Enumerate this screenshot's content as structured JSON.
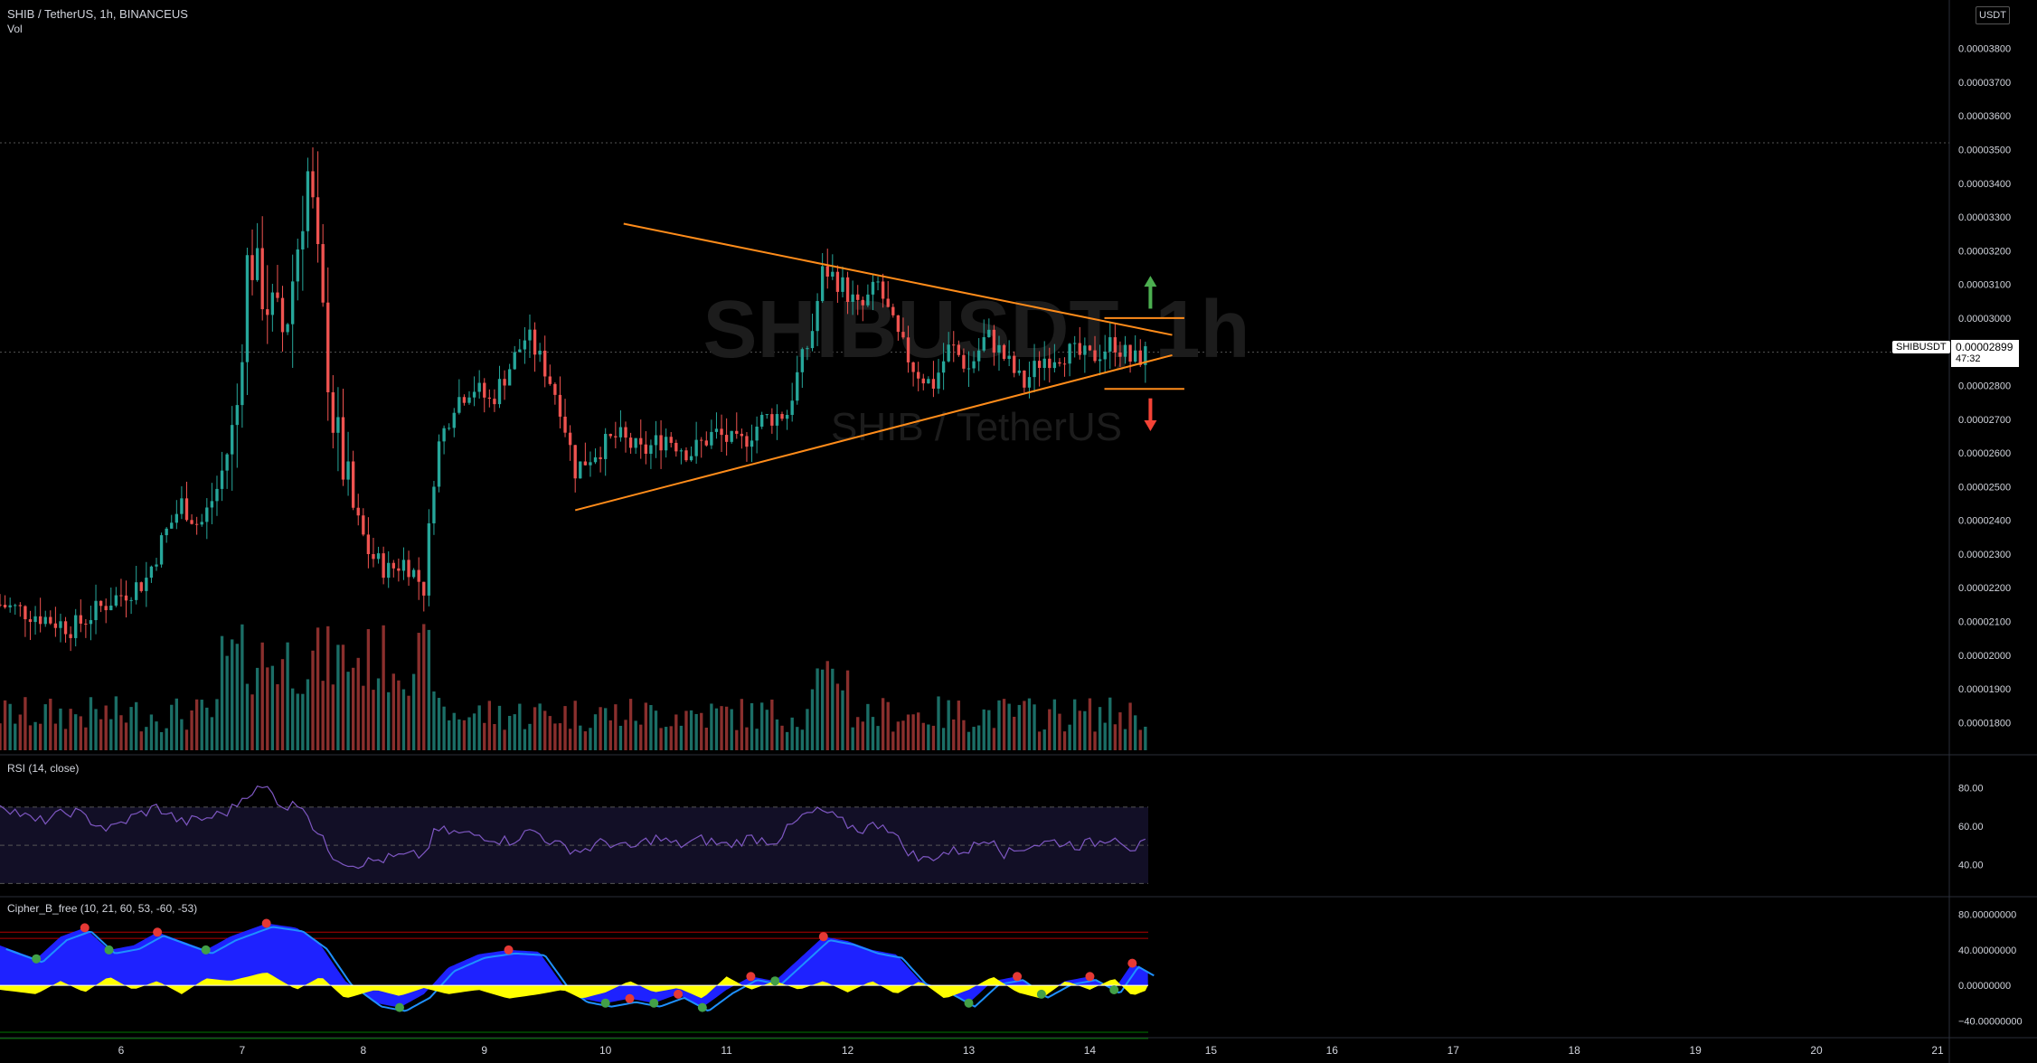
{
  "header": {
    "symbol_line": "SHIB / TetherUS, 1h, BINANCEUS",
    "volume_label": "Vol",
    "currency": "USDT"
  },
  "watermark": {
    "ticker": "SHIBUSDT, 1h",
    "name": "SHIB / TetherUS"
  },
  "price_badge": {
    "symbol": "SHIBUSDT",
    "price": "0.00002899",
    "countdown": "47:32"
  },
  "colors": {
    "background": "#000000",
    "up": "#26a69a",
    "down": "#ef5350",
    "pattern": "#ff8c1a",
    "arrow_up": "#4caf50",
    "arrow_down": "#f44336",
    "rsi_line": "#7e57c2",
    "cipher_wave": "#1e22ff",
    "cipher_money": "#ffff00"
  },
  "chart_data": [
    {
      "type": "candlestick",
      "title": "SHIB / TetherUS, 1h, BINANCEUS",
      "x_ticks": [
        "6",
        "7",
        "8",
        "9",
        "10",
        "11",
        "12",
        "13",
        "14",
        "15",
        "16",
        "17",
        "18",
        "19",
        "20",
        "21"
      ],
      "y_ticks": [
        "0.00003800",
        "0.00003700",
        "0.00003600",
        "0.00003500",
        "0.00003400",
        "0.00003300",
        "0.00003200",
        "0.00003100",
        "0.00003000",
        "0.00002800",
        "0.00002700",
        "0.00002600",
        "0.00002500",
        "0.00002400",
        "0.00002300",
        "0.00002200",
        "0.00002100",
        "0.00002000",
        "0.00001900",
        "0.00001800"
      ],
      "ylim": [
        1.75e-05,
        3.85e-05
      ],
      "last_price": 2.899e-05,
      "series_close_path": [
        [
          5.0,
          2.15
        ],
        [
          5.3,
          2.12
        ],
        [
          5.6,
          2.08
        ],
        [
          5.9,
          2.16
        ],
        [
          6.2,
          2.22
        ],
        [
          6.35,
          2.35
        ],
        [
          6.5,
          2.45
        ],
        [
          6.65,
          2.38
        ],
        [
          6.8,
          2.5
        ],
        [
          6.95,
          2.7
        ],
        [
          7.05,
          3.2
        ],
        [
          7.2,
          3.05
        ],
        [
          7.35,
          2.95
        ],
        [
          7.45,
          3.2
        ],
        [
          7.55,
          3.45
        ],
        [
          7.65,
          3.05
        ],
        [
          7.75,
          2.7
        ],
        [
          7.9,
          2.45
        ],
        [
          8.05,
          2.3
        ],
        [
          8.2,
          2.25
        ],
        [
          8.35,
          2.28
        ],
        [
          8.5,
          2.2
        ],
        [
          8.6,
          2.6
        ],
        [
          8.75,
          2.75
        ],
        [
          8.9,
          2.8
        ],
        [
          9.05,
          2.75
        ],
        [
          9.2,
          2.85
        ],
        [
          9.35,
          2.95
        ],
        [
          9.5,
          2.85
        ],
        [
          9.62,
          2.75
        ],
        [
          9.75,
          2.55
        ],
        [
          9.9,
          2.6
        ],
        [
          10.1,
          2.65
        ],
        [
          10.3,
          2.6
        ],
        [
          10.5,
          2.65
        ],
        [
          10.7,
          2.6
        ],
        [
          10.9,
          2.66
        ],
        [
          11.1,
          2.62
        ],
        [
          11.3,
          2.7
        ],
        [
          11.5,
          2.72
        ],
        [
          11.6,
          2.85
        ],
        [
          11.7,
          2.95
        ],
        [
          11.8,
          3.15
        ],
        [
          11.95,
          3.1
        ],
        [
          12.1,
          3.02
        ],
        [
          12.25,
          3.1
        ],
        [
          12.4,
          2.95
        ],
        [
          12.55,
          2.85
        ],
        [
          12.7,
          2.8
        ],
        [
          12.85,
          2.92
        ],
        [
          13.0,
          2.85
        ],
        [
          13.15,
          2.95
        ],
        [
          13.3,
          2.88
        ],
        [
          13.45,
          2.8
        ],
        [
          13.6,
          2.88
        ],
        [
          13.8,
          2.9
        ],
        [
          14.0,
          2.88
        ],
        [
          14.2,
          2.93
        ],
        [
          14.35,
          2.87
        ],
        [
          14.48,
          2.899
        ]
      ]
    },
    {
      "type": "bar",
      "title": "Vol",
      "note": "volume histogram under price pane"
    },
    {
      "type": "line",
      "title": "RSI (14, close)",
      "y_ticks": [
        "80.00",
        "60.00",
        "40.00"
      ],
      "ylim": [
        25,
        95
      ],
      "bands": [
        70,
        50,
        30
      ],
      "points": [
        [
          5.0,
          72
        ],
        [
          5.3,
          62
        ],
        [
          5.6,
          68
        ],
        [
          5.9,
          58
        ],
        [
          6.1,
          65
        ],
        [
          6.3,
          70
        ],
        [
          6.5,
          62
        ],
        [
          6.7,
          64
        ],
        [
          6.9,
          68
        ],
        [
          7.05,
          78
        ],
        [
          7.2,
          80
        ],
        [
          7.35,
          70
        ],
        [
          7.5,
          72
        ],
        [
          7.6,
          58
        ],
        [
          7.75,
          45
        ],
        [
          7.9,
          40
        ],
        [
          8.1,
          42
        ],
        [
          8.3,
          44
        ],
        [
          8.5,
          45
        ],
        [
          8.6,
          58
        ],
        [
          8.8,
          56
        ],
        [
          9.0,
          55
        ],
        [
          9.2,
          52
        ],
        [
          9.4,
          58
        ],
        [
          9.6,
          50
        ],
        [
          9.8,
          47
        ],
        [
          10.0,
          52
        ],
        [
          10.2,
          48
        ],
        [
          10.4,
          54
        ],
        [
          10.6,
          50
        ],
        [
          10.8,
          53
        ],
        [
          11.0,
          50
        ],
        [
          11.2,
          54
        ],
        [
          11.4,
          52
        ],
        [
          11.5,
          58
        ],
        [
          11.65,
          66
        ],
        [
          11.8,
          68
        ],
        [
          11.95,
          62
        ],
        [
          12.1,
          58
        ],
        [
          12.3,
          62
        ],
        [
          12.45,
          50
        ],
        [
          12.6,
          42
        ],
        [
          12.8,
          46
        ],
        [
          13.0,
          48
        ],
        [
          13.2,
          55
        ],
        [
          13.3,
          45
        ],
        [
          13.5,
          50
        ],
        [
          13.7,
          52
        ],
        [
          13.9,
          50
        ],
        [
          14.1,
          52
        ],
        [
          14.2,
          56
        ],
        [
          14.35,
          48
        ],
        [
          14.48,
          51
        ]
      ]
    },
    {
      "type": "area",
      "title": "Cipher_B_free (10, 21, 60, 53, -60, -53)",
      "y_ticks": [
        "80.00000000",
        "40.00000000",
        "0.00000000",
        "−40.00000000"
      ],
      "ylim": [
        -55,
        95
      ],
      "overbought": [
        60,
        53
      ],
      "oversold": [
        -60,
        -53
      ],
      "wave_points": [
        [
          5.0,
          45
        ],
        [
          5.3,
          30
        ],
        [
          5.5,
          55
        ],
        [
          5.7,
          65
        ],
        [
          5.9,
          40
        ],
        [
          6.1,
          45
        ],
        [
          6.3,
          60
        ],
        [
          6.5,
          50
        ],
        [
          6.7,
          40
        ],
        [
          6.9,
          55
        ],
        [
          7.2,
          70
        ],
        [
          7.45,
          65
        ],
        [
          7.65,
          45
        ],
        [
          7.85,
          5
        ],
        [
          8.1,
          -20
        ],
        [
          8.3,
          -25
        ],
        [
          8.5,
          -10
        ],
        [
          8.7,
          20
        ],
        [
          8.95,
          35
        ],
        [
          9.2,
          40
        ],
        [
          9.45,
          38
        ],
        [
          9.65,
          0
        ],
        [
          9.8,
          -15
        ],
        [
          10.0,
          -20
        ],
        [
          10.2,
          -15
        ],
        [
          10.4,
          -20
        ],
        [
          10.6,
          -10
        ],
        [
          10.8,
          -25
        ],
        [
          11.0,
          -5
        ],
        [
          11.2,
          10
        ],
        [
          11.4,
          5
        ],
        [
          11.6,
          30
        ],
        [
          11.8,
          55
        ],
        [
          12.0,
          50
        ],
        [
          12.2,
          40
        ],
        [
          12.4,
          35
        ],
        [
          12.6,
          5
        ],
        [
          12.8,
          -5
        ],
        [
          13.0,
          -20
        ],
        [
          13.2,
          5
        ],
        [
          13.4,
          10
        ],
        [
          13.6,
          -10
        ],
        [
          13.8,
          5
        ],
        [
          14.0,
          10
        ],
        [
          14.2,
          -5
        ],
        [
          14.35,
          25
        ],
        [
          14.48,
          15
        ]
      ],
      "money_flow_points": [
        [
          5.0,
          -5
        ],
        [
          5.3,
          -10
        ],
        [
          5.5,
          5
        ],
        [
          5.7,
          -8
        ],
        [
          5.9,
          10
        ],
        [
          6.1,
          -5
        ],
        [
          6.3,
          5
        ],
        [
          6.5,
          -10
        ],
        [
          6.7,
          8
        ],
        [
          6.9,
          5
        ],
        [
          7.2,
          15
        ],
        [
          7.45,
          -5
        ],
        [
          7.65,
          10
        ],
        [
          7.85,
          -15
        ],
        [
          8.1,
          -5
        ],
        [
          8.3,
          -12
        ],
        [
          8.5,
          -3
        ],
        [
          8.7,
          -10
        ],
        [
          8.95,
          -5
        ],
        [
          9.2,
          -15
        ],
        [
          9.45,
          -10
        ],
        [
          9.65,
          -5
        ],
        [
          9.8,
          -15
        ],
        [
          10.0,
          -8
        ],
        [
          10.2,
          5
        ],
        [
          10.4,
          -8
        ],
        [
          10.6,
          -3
        ],
        [
          10.8,
          -15
        ],
        [
          11.0,
          10
        ],
        [
          11.2,
          -5
        ],
        [
          11.4,
          5
        ],
        [
          11.6,
          -5
        ],
        [
          11.8,
          5
        ],
        [
          12.0,
          -8
        ],
        [
          12.2,
          5
        ],
        [
          12.4,
          -10
        ],
        [
          12.6,
          5
        ],
        [
          12.8,
          -15
        ],
        [
          13.0,
          -5
        ],
        [
          13.2,
          10
        ],
        [
          13.4,
          -8
        ],
        [
          13.6,
          -15
        ],
        [
          13.8,
          5
        ],
        [
          14.0,
          -5
        ],
        [
          14.2,
          8
        ],
        [
          14.35,
          -12
        ],
        [
          14.48,
          -5
        ]
      ]
    }
  ],
  "pattern": {
    "name": "symmetrical triangle",
    "upper_line": [
      [
        10.15,
        3.28
      ],
      [
        14.68,
        2.95
      ]
    ],
    "lower_line": [
      [
        9.75,
        2.43
      ],
      [
        14.68,
        2.89
      ]
    ],
    "breakout_levels": [
      3.0,
      2.79
    ],
    "signal_up": "breakout up",
    "signal_down": "breakdown"
  }
}
